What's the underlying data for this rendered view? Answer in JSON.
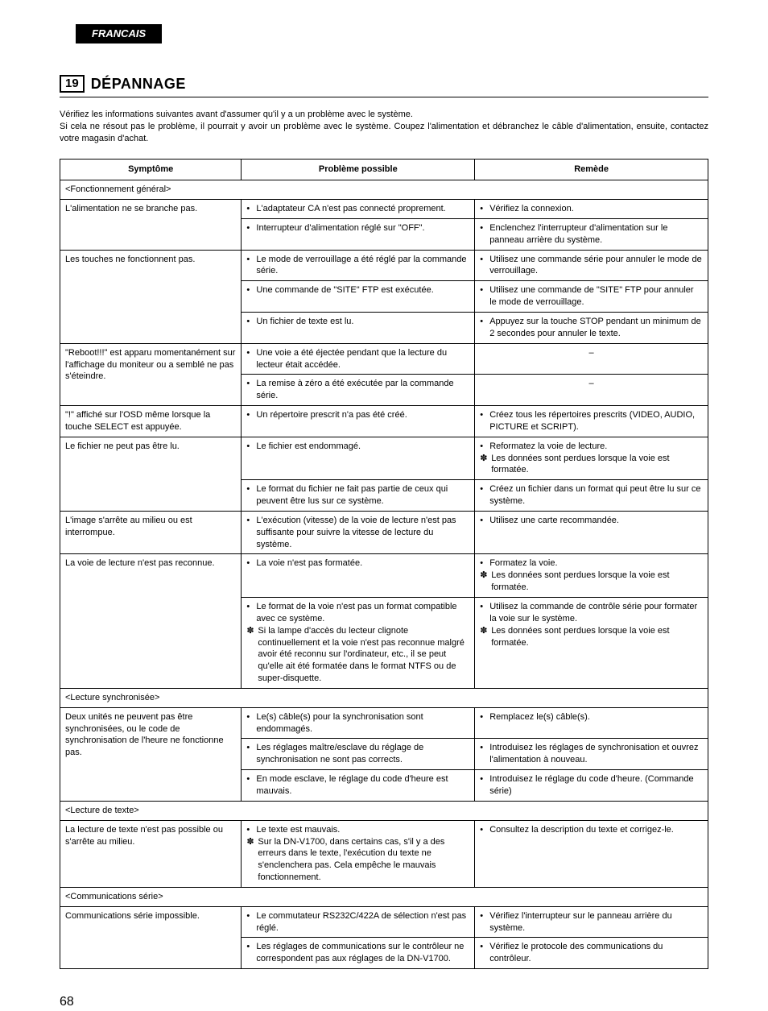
{
  "lang_tab": "FRANCAIS",
  "section_num": "19",
  "section_title": "DÉPANNAGE",
  "intro_1": "Vérifiez les informations suivantes avant d'assumer qu'il y a un problème avec le système.",
  "intro_2": "Si cela ne résout pas le problème, il pourrait y avoir un problème avec le système. Coupez l'alimentation et débranchez le câble d'alimentation, ensuite, contactez votre magasin d'achat.",
  "headers": {
    "c1": "Symptôme",
    "c2": "Problème possible",
    "c3": "Remède"
  },
  "cat_general": "<Fonctionnement général>",
  "r1_sym": "L'alimentation ne se branche pas.",
  "r1_p1": "L'adaptateur CA n'est pas connecté proprement.",
  "r1_r1": "Vérifiez la connexion.",
  "r1_p2": "Interrupteur d'alimentation réglé sur \"OFF\".",
  "r1_r2": "Enclenchez l'interrupteur d'alimentation sur le panneau arrière du système.",
  "r2_sym": "Les touches ne fonctionnent pas.",
  "r2_p1": "Le mode de verrouillage a été réglé par la commande série.",
  "r2_r1": "Utilisez une commande série pour annuler le mode de verrouillage.",
  "r2_p2": "Une commande de \"SITE\" FTP est exécutée.",
  "r2_r2": "Utilisez une commande de \"SITE\" FTP pour annuler le mode de verrouillage.",
  "r2_p3": "Un fichier de texte est lu.",
  "r2_r3": "Appuyez sur la touche STOP pendant un minimum de 2 secondes pour annuler le texte.",
  "r3_sym": "\"Reboot!!!\" est apparu momentanément sur l'affichage du moniteur ou a semblé ne pas s'éteindre.",
  "r3_p1": "Une voie a été éjectée pendant que la lecture du lecteur était accédée.",
  "r3_r1": "–",
  "r3_p2": "La remise à zéro a été exécutée par la commande série.",
  "r3_r2": "–",
  "r4_sym": "\"!\" affiché sur l'OSD même lorsque la touche SELECT est appuyée.",
  "r4_p1": "Un répertoire prescrit n'a pas été créé.",
  "r4_r1": "Créez tous les répertoires prescrits (VIDEO, AUDIO, PICTURE et SCRIPT).",
  "r5_sym": "Le fichier ne peut pas être lu.",
  "r5_p1": "Le fichier est endommagé.",
  "r5_r1a": "Reformatez la voie de lecture.",
  "r5_r1b": "Les données sont perdues lorsque la voie est formatée.",
  "r5_p2": "Le format du fichier ne fait pas partie de ceux qui peuvent être lus sur ce système.",
  "r5_r2": "Créez un fichier dans un format qui peut être lu sur ce système.",
  "r6_sym": "L'image s'arrête au milieu ou est interrompue.",
  "r6_p1": "L'exécution (vitesse) de la voie de lecture n'est pas suffisante pour suivre la vitesse de lecture du système.",
  "r6_r1": "Utilisez une carte recommandée.",
  "r7_sym": "La voie de lecture n'est pas reconnue.",
  "r7_p1": "La voie n'est pas formatée.",
  "r7_r1a": "Formatez la voie.",
  "r7_r1b": "Les données sont perdues lorsque la voie est formatée.",
  "r7_p2a": "Le format de la voie n'est pas un format compatible avec ce système.",
  "r7_p2b": "Si la lampe d'accès du lecteur clignote continuellement et la voie n'est pas reconnue malgré avoir été reconnu sur l'ordinateur, etc., il se peut qu'elle ait été formatée dans le format NTFS ou de super-disquette.",
  "r7_r2a": "Utilisez la commande de contrôle série pour formater la voie sur le système.",
  "r7_r2b": "Les données sont perdues lorsque la voie est formatée.",
  "cat_sync": "<Lecture synchronisée>",
  "r8_sym": "Deux unités ne peuvent pas être synchronisées, ou le code de synchronisation de l'heure ne fonctionne pas.",
  "r8_p1": "Le(s) câble(s) pour la synchronisation sont endommagés.",
  "r8_r1": "Remplacez le(s) câble(s).",
  "r8_p2": "Les réglages maître/esclave du réglage de synchronisation ne sont pas corrects.",
  "r8_r2": "Introduisez les réglages de synchronisation et ouvrez l'alimentation à nouveau.",
  "r8_p3": "En mode esclave, le réglage du code d'heure est mauvais.",
  "r8_r3": "Introduisez le réglage du code d'heure. (Commande série)",
  "cat_text": "<Lecture de texte>",
  "r9_sym": "La lecture de texte n'est pas possible ou s'arrête au milieu.",
  "r9_p1a": "Le texte est mauvais.",
  "r9_p1b": "Sur la DN-V1700, dans certains cas, s'il y a des erreurs dans le texte, l'exécution du texte ne s'enclenchera pas. Cela empêche le mauvais fonctionnement.",
  "r9_r1": "Consultez la description du texte et corrigez-le.",
  "cat_comm": "<Communications série>",
  "r10_sym": "Communications série impossible.",
  "r10_p1": "Le commutateur RS232C/422A de sélection n'est pas réglé.",
  "r10_r1": "Vérifiez l'interrupteur sur le panneau arrière du système.",
  "r10_p2": "Les réglages de communications sur le contrôleur ne correspondent pas aux réglages de la DN-V1700.",
  "r10_r2": "Vérifiez le protocole des communications du contrôleur.",
  "page_num": "68"
}
